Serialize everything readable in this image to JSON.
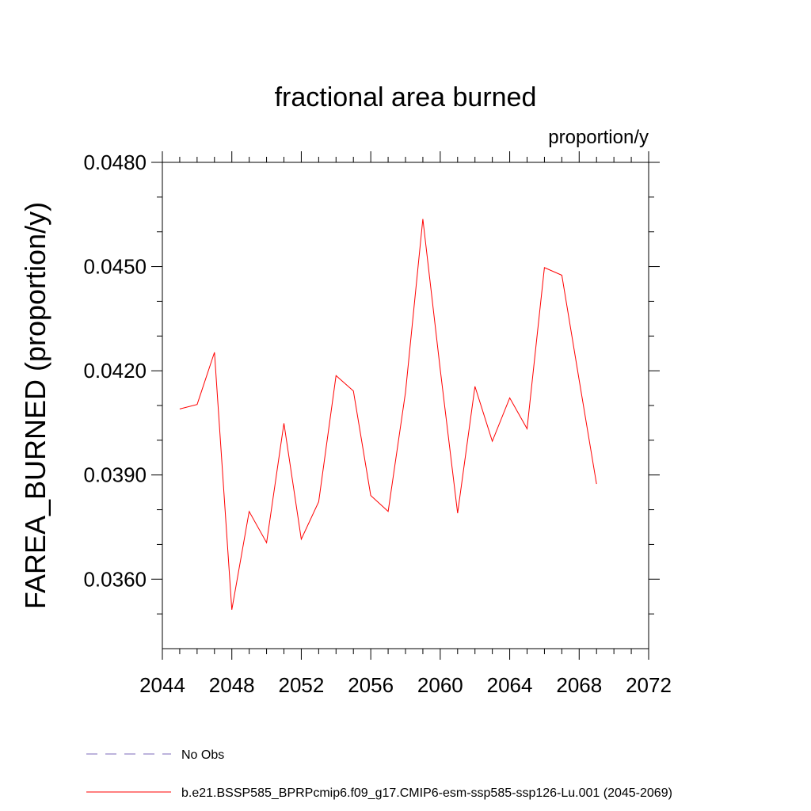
{
  "chart_data": {
    "type": "line",
    "title": "fractional area burned",
    "units_label": "proportion/y",
    "xlabel": "",
    "ylabel": "FAREA_BURNED  (proportion/y)",
    "xlim": [
      2044,
      2072
    ],
    "ylim": [
      0.034,
      0.048
    ],
    "x_ticks": [
      2044,
      2048,
      2052,
      2056,
      2060,
      2064,
      2068,
      2072
    ],
    "y_ticks": [
      0.036,
      0.039,
      0.042,
      0.045,
      0.048
    ],
    "y_tick_labels": [
      "0.0360",
      "0.0390",
      "0.0420",
      "0.0450",
      "0.0480"
    ],
    "grid": false,
    "legend_position": "bottom-left",
    "series": [
      {
        "name": "No Obs",
        "color": "#7b68b8",
        "dash": "dashed",
        "x": [],
        "y": []
      },
      {
        "name": "b.e21.BSSP585_BPRPcmip6.f09_g17.CMIP6-esm-ssp585-ssp126-Lu.001 (2045-2069)",
        "color": "#ff0000",
        "dash": "solid",
        "x": [
          2045,
          2046,
          2047,
          2048,
          2049,
          2050,
          2051,
          2052,
          2053,
          2054,
          2055,
          2056,
          2057,
          2058,
          2059,
          2060,
          2061,
          2062,
          2063,
          2064,
          2065,
          2066,
          2067,
          2068,
          2069
        ],
        "y": [
          0.0409,
          0.04103,
          0.04253,
          0.03512,
          0.03795,
          0.03705,
          0.04049,
          0.03715,
          0.03823,
          0.04186,
          0.04142,
          0.03841,
          0.03795,
          0.04138,
          0.04637,
          0.04203,
          0.0379,
          0.04155,
          0.03997,
          0.04122,
          0.04033,
          0.04497,
          0.04475,
          0.04173,
          0.03874
        ]
      }
    ]
  }
}
